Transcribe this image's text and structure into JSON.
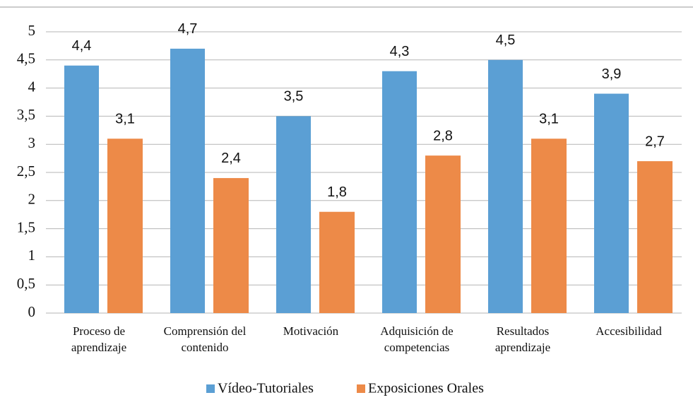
{
  "chart_data": {
    "type": "bar",
    "categories": [
      "Proceso de\naprendizaje",
      "Comprensión del\ncontenido",
      "Motivación",
      "Adquisición de\ncompetencias",
      "Resultados\naprendizaje",
      "Accesibilidad"
    ],
    "series": [
      {
        "name": "Vídeo-Tutoriales",
        "color": "#5b9fd4",
        "values": [
          4.4,
          4.7,
          3.5,
          4.3,
          4.5,
          3.9
        ],
        "value_labels": [
          "4,4",
          "4,7",
          "3,5",
          "4,3",
          "4,5",
          "3,9"
        ]
      },
      {
        "name": "Exposiciones Orales",
        "color": "#ed8a48",
        "values": [
          3.1,
          2.4,
          1.8,
          2.8,
          3.1,
          2.7
        ],
        "value_labels": [
          "3,1",
          "2,4",
          "1,8",
          "2,8",
          "3,1",
          "2,7"
        ]
      }
    ],
    "ylim": [
      0,
      5
    ],
    "yticks": [
      0,
      {
        "value": 0.5,
        "label": "0,5"
      },
      1,
      {
        "value": 1.5,
        "label": "1,5"
      },
      2,
      {
        "value": 2.5,
        "label": "2,5"
      },
      3,
      {
        "value": 3.5,
        "label": "3,5"
      },
      4,
      {
        "value": 4.5,
        "label": "4,5"
      },
      5
    ],
    "grid": true,
    "legend": "bottom"
  }
}
